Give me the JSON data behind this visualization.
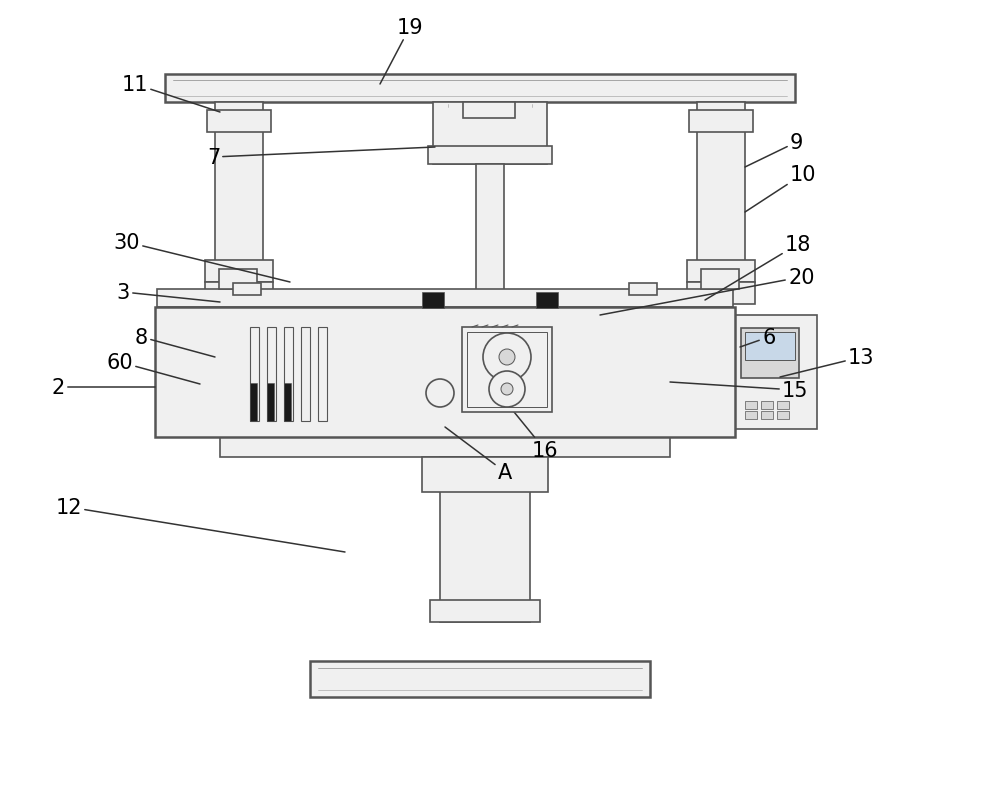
{
  "bg_color": "#ffffff",
  "line_color": "#555555",
  "fill_light": "#f0f0f0",
  "fill_mid": "#d8d8d8",
  "fill_dark": "#b8b8b8",
  "fill_black": "#1a1a1a",
  "lw_main": 1.2,
  "lw_thick": 1.8,
  "lw_thin": 0.7,
  "label_fs": 15,
  "anno_lw": 1.1,
  "anno_color": "#333333"
}
